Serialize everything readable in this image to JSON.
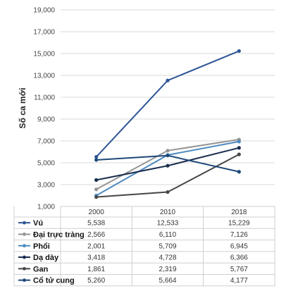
{
  "chart_data": {
    "type": "line",
    "ylabel": "Số ca mới",
    "x": [
      "2000",
      "2010",
      "2018"
    ],
    "ylim": [
      1000,
      19000
    ],
    "yticks": [
      "1,000",
      "3,000",
      "5,000",
      "7,000",
      "9,000",
      "11,000",
      "13,000",
      "15,000",
      "17,000",
      "19,000"
    ],
    "grid": true,
    "legend": "data-table-below",
    "series": [
      {
        "name": "Vú",
        "values": [
          5538,
          12533,
          15229
        ],
        "labels": [
          "5,538",
          "12,533",
          "15,229"
        ],
        "color": "#2e5597"
      },
      {
        "name": "Đại trực tràng",
        "values": [
          2566,
          6110,
          7126
        ],
        "labels": [
          "2,566",
          "6,110",
          "7,126"
        ],
        "color": "#959595"
      },
      {
        "name": "Phổi",
        "values": [
          2001,
          5709,
          6945
        ],
        "labels": [
          "2,001",
          "5,709",
          "6,945"
        ],
        "color": "#4e8bbf"
      },
      {
        "name": "Dạ dày",
        "values": [
          3418,
          4728,
          6366
        ],
        "labels": [
          "3,418",
          "4,728",
          "6,366"
        ],
        "color": "#1a2d4f"
      },
      {
        "name": "Gan",
        "values": [
          1861,
          2319,
          5767
        ],
        "labels": [
          "1,861",
          "2,319",
          "5,767"
        ],
        "color": "#474747"
      },
      {
        "name": "Cổ tử cung",
        "values": [
          5260,
          5664,
          4177
        ],
        "labels": [
          "5,260",
          "5,664",
          "4,177"
        ],
        "color": "#1f4879"
      }
    ]
  }
}
